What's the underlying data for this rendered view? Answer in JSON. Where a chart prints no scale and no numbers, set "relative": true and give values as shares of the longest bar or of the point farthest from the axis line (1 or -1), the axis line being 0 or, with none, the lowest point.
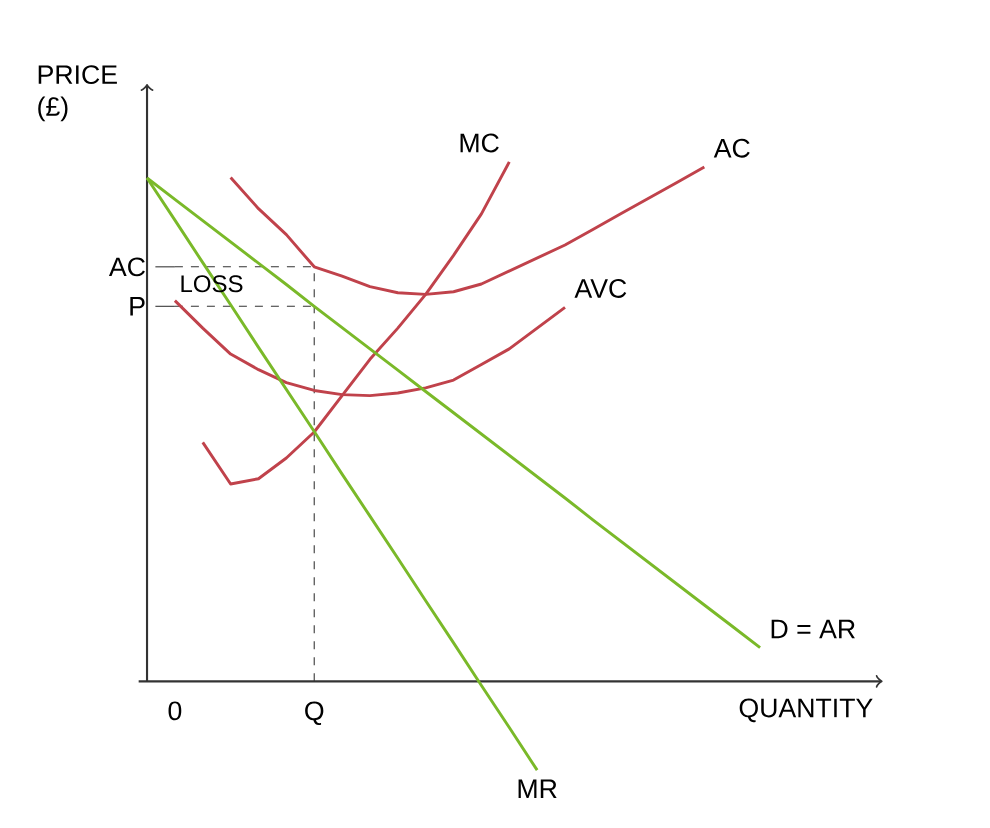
{
  "chart_data": {
    "type": "line",
    "relative": true,
    "xlabel": "QUANTITY",
    "ylabel": "PRICE (£)",
    "categories": [
      null,
      "0",
      null,
      null,
      null,
      null,
      "Q",
      null,
      null,
      null,
      null,
      null,
      null,
      null,
      null,
      null,
      null,
      null,
      null,
      null,
      null,
      null,
      null
    ],
    "series": [
      {
        "name": "MC",
        "color": "#c0424b",
        "values": [
          null,
          null,
          0.46,
          0.38,
          0.39,
          0.43,
          0.48,
          0.55,
          0.62,
          0.68,
          0.745,
          0.82,
          0.9,
          1.0,
          null,
          null,
          null,
          null,
          null,
          null,
          null,
          null,
          null
        ]
      },
      {
        "name": "AC",
        "color": "#c0424b",
        "values": [
          null,
          null,
          null,
          0.97,
          0.91,
          0.86,
          0.798,
          0.78,
          0.76,
          0.748,
          0.745,
          0.75,
          0.765,
          0.79,
          0.815,
          0.84,
          0.87,
          0.9,
          0.93,
          0.96,
          0.99,
          null,
          null
        ]
      },
      {
        "name": "AVC",
        "color": "#c0424b",
        "values": [
          null,
          0.733,
          0.68,
          0.63,
          0.6,
          0.575,
          0.56,
          0.552,
          0.55,
          0.555,
          0.565,
          0.58,
          0.61,
          0.64,
          0.68,
          0.72,
          null,
          null,
          null,
          null,
          null,
          null,
          null
        ]
      },
      {
        "name": "D = AR",
        "color": "#7ab929",
        "values": [
          0.969,
          0.928,
          0.887,
          0.846,
          0.805,
          0.764,
          0.722,
          0.681,
          0.64,
          0.599,
          0.558,
          0.517,
          0.476,
          0.435,
          0.394,
          0.353,
          0.311,
          0.27,
          0.229,
          0.188,
          0.147,
          0.106,
          0.065
        ]
      },
      {
        "name": "MR",
        "color": "#7ab929",
        "values": [
          0.969,
          0.888,
          0.806,
          0.725,
          0.643,
          0.562,
          0.481,
          0.399,
          0.318,
          0.237,
          0.155,
          0.074,
          -0.008,
          -0.089,
          -0.171,
          null,
          null,
          null,
          null,
          null,
          null,
          null,
          null
        ]
      }
    ],
    "ref_lines": [
      {
        "axis": "y",
        "value": 0.798,
        "label": "AC",
        "line_style": "dashed",
        "color": "#333333"
      },
      {
        "axis": "y",
        "value": 0.722,
        "label": "P",
        "line_style": "dashed",
        "color": "#333333"
      },
      {
        "axis": "x",
        "value": "Q",
        "line_style": "dashed",
        "color": "#333333"
      }
    ],
    "annotations": [
      "LOSS"
    ]
  }
}
